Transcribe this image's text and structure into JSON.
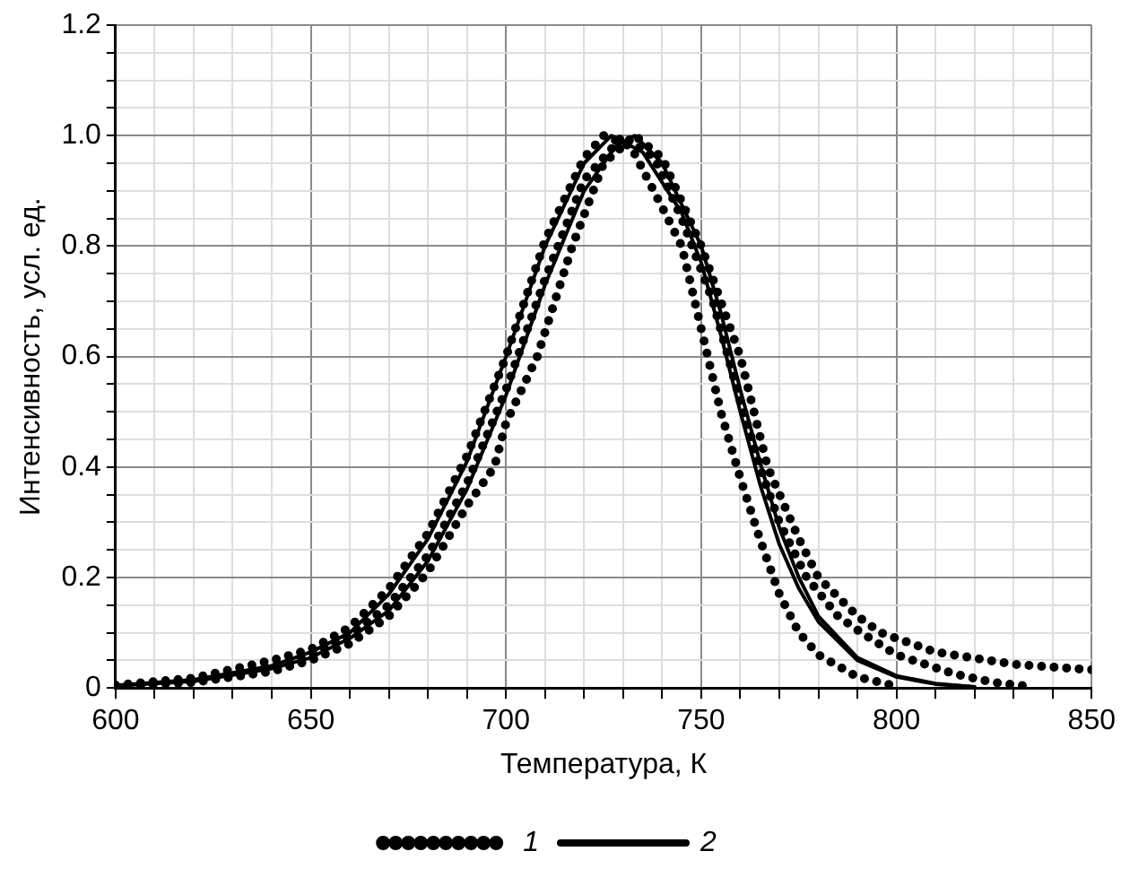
{
  "chart_data": {
    "type": "line",
    "xlabel": "Температура, К",
    "ylabel": "Интенсивность, усл. ед.",
    "xlim": [
      600,
      850
    ],
    "xticks": [
      600,
      {
        "value": 610,
        "label": null
      },
      {
        "value": 620,
        "label": null
      },
      {
        "value": 630,
        "label": null
      },
      {
        "value": 640,
        "label": null
      },
      650,
      {
        "value": 660,
        "label": null
      },
      {
        "value": 670,
        "label": null
      },
      {
        "value": 680,
        "label": null
      },
      {
        "value": 690,
        "label": null
      },
      700,
      {
        "value": 710,
        "label": null
      },
      {
        "value": 720,
        "label": null
      },
      {
        "value": 730,
        "label": null
      },
      {
        "value": 740,
        "label": null
      },
      750,
      {
        "value": 760,
        "label": null
      },
      {
        "value": 770,
        "label": null
      },
      {
        "value": 780,
        "label": null
      },
      {
        "value": 790,
        "label": null
      },
      800,
      {
        "value": 810,
        "label": null
      },
      {
        "value": 820,
        "label": null
      },
      {
        "value": 830,
        "label": null
      },
      {
        "value": 840,
        "label": null
      },
      850
    ],
    "ylim": [
      0,
      1.2
    ],
    "yticks": [
      0,
      {
        "value": 0.05,
        "label": null
      },
      {
        "value": 0.1,
        "label": null
      },
      {
        "value": 0.15,
        "label": null
      },
      0.2,
      {
        "value": 0.25,
        "label": null
      },
      {
        "value": 0.3,
        "label": null
      },
      {
        "value": 0.35,
        "label": null
      },
      0.4,
      {
        "value": 0.45,
        "label": null
      },
      {
        "value": 0.5,
        "label": null
      },
      {
        "value": 0.55,
        "label": null
      },
      0.6,
      {
        "value": 0.65,
        "label": null
      },
      {
        "value": 0.7,
        "label": null
      },
      {
        "value": 0.75,
        "label": null
      },
      0.8,
      {
        "value": 0.85,
        "label": null
      },
      {
        "value": 0.9,
        "label": null
      },
      {
        "value": 0.95,
        "label": null
      },
      {
        "value": 1,
        "label": "1.0"
      },
      {
        "value": 1.05,
        "label": null
      },
      {
        "value": 1.1,
        "label": null
      },
      {
        "value": 1.15,
        "label": null
      },
      1.2
    ],
    "grid": true,
    "legend": "bottom",
    "marker": "none",
    "series": [
      {
        "name": "1",
        "color": "#000000",
        "line_style": "dotted",
        "x": [
          600,
          620,
          640,
          650,
          660,
          670,
          680,
          690,
          700,
          710,
          720,
          725,
          732,
          740,
          745,
          750,
          755,
          760,
          765,
          770,
          775,
          780,
          790,
          800
        ],
        "values": [
          0.005,
          0.018,
          0.05,
          0.07,
          0.11,
          0.18,
          0.28,
          0.42,
          0.6,
          0.81,
          0.96,
          1.0,
          0.98,
          0.87,
          0.8,
          0.65,
          0.5,
          0.38,
          0.27,
          0.17,
          0.1,
          0.06,
          0.02,
          0.003
        ]
      },
      {
        "color": "#000000",
        "line_style": "dotted",
        "x": [
          600,
          620,
          640,
          650,
          660,
          670,
          680,
          690,
          697,
          700,
          708,
          717,
          725,
          733,
          740,
          750,
          760,
          767,
          775,
          780,
          790,
          796,
          810,
          830,
          850
        ],
        "values": [
          0.003,
          0.01,
          0.03,
          0.05,
          0.08,
          0.13,
          0.21,
          0.33,
          0.4,
          0.48,
          0.6,
          0.8,
          0.95,
          1.0,
          0.96,
          0.8,
          0.6,
          0.4,
          0.27,
          0.2,
          0.13,
          0.1,
          0.065,
          0.043,
          0.033
        ]
      },
      {
        "color": "#000000",
        "line_style": "dotted",
        "x": [
          600,
          620,
          640,
          650,
          660,
          670,
          680,
          690,
          700,
          710,
          720,
          730,
          738,
          745,
          753,
          760,
          765,
          770,
          777,
          785,
          791,
          800,
          815,
          825,
          835
        ],
        "values": [
          0.004,
          0.013,
          0.04,
          0.06,
          0.095,
          0.15,
          0.24,
          0.37,
          0.54,
          0.74,
          0.92,
          1.0,
          0.96,
          0.85,
          0.7,
          0.52,
          0.4,
          0.3,
          0.2,
          0.13,
          0.1,
          0.06,
          0.025,
          0.01,
          0.002
        ]
      },
      {
        "name": "2",
        "color": "#000000",
        "line_style": "solid",
        "x": [
          600,
          620,
          640,
          650,
          660,
          670,
          680,
          690,
          700,
          710,
          720,
          727,
          735,
          745,
          750,
          755,
          760,
          765,
          770,
          775,
          780,
          790,
          800,
          810,
          820
        ],
        "values": [
          0.005,
          0.015,
          0.04,
          0.065,
          0.1,
          0.17,
          0.27,
          0.41,
          0.6,
          0.8,
          0.95,
          1.0,
          0.97,
          0.86,
          0.77,
          0.64,
          0.5,
          0.37,
          0.26,
          0.18,
          0.12,
          0.05,
          0.02,
          0.007,
          0.002
        ]
      },
      {
        "color": "#000000",
        "line_style": "solid",
        "x": [
          600,
          620,
          640,
          650,
          660,
          670,
          680,
          690,
          700,
          710,
          720,
          728,
          733,
          740,
          750,
          755,
          760,
          765,
          770,
          775,
          780,
          790,
          800,
          810,
          820
        ],
        "values": [
          0.004,
          0.012,
          0.035,
          0.055,
          0.09,
          0.14,
          0.23,
          0.36,
          0.53,
          0.73,
          0.9,
          0.98,
          1.0,
          0.95,
          0.8,
          0.68,
          0.54,
          0.41,
          0.29,
          0.2,
          0.13,
          0.055,
          0.022,
          0.008,
          0.002
        ]
      }
    ]
  }
}
